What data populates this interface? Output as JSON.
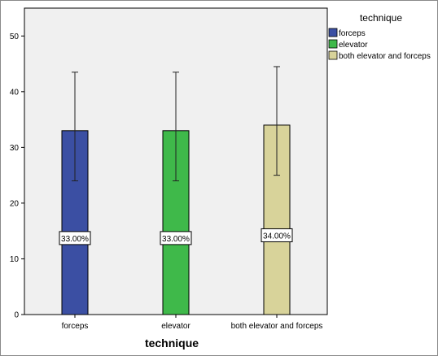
{
  "chart_data": {
    "type": "bar",
    "xlabel": "technique",
    "ylabel": "",
    "ylim": [
      0,
      55
    ],
    "yticks": [
      0,
      10,
      20,
      30,
      40,
      50
    ],
    "grid": false,
    "legend_position": "right",
    "legend_title": "technique",
    "categories": [
      "forceps",
      "elevator",
      "both elevator and forceps"
    ],
    "values": [
      33,
      33,
      34
    ],
    "error_low": [
      24,
      24,
      25
    ],
    "error_high": [
      43.5,
      43.5,
      44.5
    ],
    "data_labels": [
      "33.00%",
      "33.00%",
      "34.00%"
    ],
    "colors": [
      "#3b4fa3",
      "#3fb94a",
      "#d8d39a"
    ],
    "legend": [
      {
        "label": "forceps",
        "color": "#3b4fa3"
      },
      {
        "label": "elevator",
        "color": "#3fb94a"
      },
      {
        "label": "both elevator and forceps",
        "color": "#d8d39a"
      }
    ],
    "plot_background": "#f0f0f0"
  }
}
